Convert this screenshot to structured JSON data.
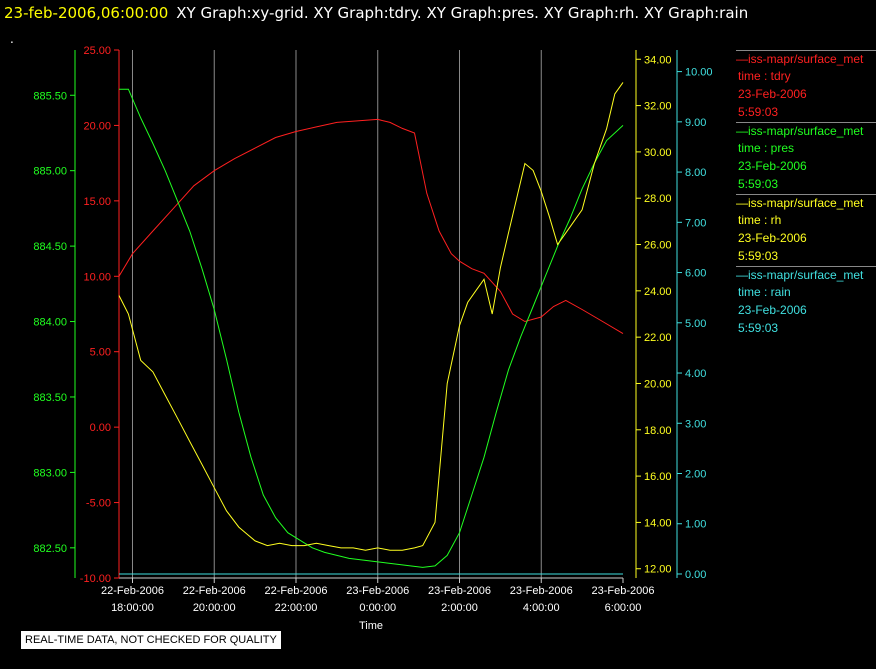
{
  "header": {
    "timestamp": "23-feb-2006,06:00:00",
    "title": "XY Graph:xy-grid.  XY Graph:tdry.  XY Graph:pres.  XY Graph:rh.  XY Graph:rain"
  },
  "dot": ".",
  "footer_note": "REAL-TIME DATA, NOT CHECKED FOR QUALITY",
  "legend": [
    {
      "name": "iss-mapr/surface_met",
      "line1": "time : tdry",
      "line2": "23-Feb-2006",
      "line3": "5:59:03",
      "color": "#ff2020"
    },
    {
      "name": "iss-mapr/surface_met",
      "line1": "time : pres",
      "line2": "23-Feb-2006",
      "line3": "5:59:03",
      "color": "#20ff20"
    },
    {
      "name": "iss-mapr/surface_met",
      "line1": "time : rh",
      "line2": "23-Feb-2006",
      "line3": "5:59:03",
      "color": "#ffff20"
    },
    {
      "name": "iss-mapr/surface_met",
      "line1": "time : rain",
      "line2": "23-Feb-2006",
      "line3": "5:59:03",
      "color": "#40e0e0"
    }
  ],
  "chart_data": {
    "type": "line",
    "xlabel": "Time",
    "x_ticks": [
      {
        "l1": "22-Feb-2006",
        "l2": "18:00:00",
        "h": 18
      },
      {
        "l1": "22-Feb-2006",
        "l2": "20:00:00",
        "h": 20
      },
      {
        "l1": "22-Feb-2006",
        "l2": "22:00:00",
        "h": 22
      },
      {
        "l1": "23-Feb-2006",
        "l2": "0:00:00",
        "h": 24
      },
      {
        "l1": "23-Feb-2006",
        "l2": "2:00:00",
        "h": 26
      },
      {
        "l1": "23-Feb-2006",
        "l2": "4:00:00",
        "h": 28
      },
      {
        "l1": "23-Feb-2006",
        "l2": "6:00:00",
        "h": 30
      }
    ],
    "grid": true,
    "axes": {
      "pres": {
        "color": "#20ff20",
        "min": 882.3,
        "max": 885.8,
        "ticks": [
          "882.50",
          "883.00",
          "883.50",
          "884.00",
          "884.50",
          "885.00",
          "885.50"
        ]
      },
      "tdry": {
        "color": "#ff2020",
        "min": -10,
        "max": 25,
        "ticks": [
          "-10.00",
          "-5.00",
          "0.00",
          "5.00",
          "10.00",
          "15.00",
          "20.00",
          "25.00"
        ]
      },
      "rh": {
        "color": "#ffff20",
        "min": 11.6,
        "max": 34.4,
        "ticks": [
          "12.00",
          "14.00",
          "16.00",
          "18.00",
          "20.00",
          "22.00",
          "24.00",
          "26.00",
          "28.00",
          "30.00",
          "32.00",
          "34.00"
        ]
      },
      "rain": {
        "color": "#40e0e0",
        "min": -0.08,
        "max": 10.43,
        "ticks": [
          "0.00",
          "1.00",
          "2.00",
          "3.00",
          "4.00",
          "5.00",
          "6.00",
          "7.00",
          "8.00",
          "9.00",
          "10.00"
        ]
      }
    },
    "series": [
      {
        "name": "tdry",
        "axis": "tdry",
        "color": "#ff2020",
        "x": [
          17.67,
          18.0,
          18.5,
          19.0,
          19.5,
          20.0,
          20.5,
          21.0,
          21.5,
          22.0,
          22.5,
          23.0,
          23.5,
          24.0,
          24.3,
          24.6,
          24.9,
          25.2,
          25.5,
          25.8,
          26.0,
          26.3,
          26.6,
          27.0,
          27.3,
          27.6,
          28.0,
          28.3,
          28.6,
          29.0,
          29.5,
          30.0
        ],
        "y": [
          10.0,
          11.5,
          13.0,
          14.5,
          16.0,
          17.0,
          17.8,
          18.5,
          19.2,
          19.6,
          19.9,
          20.2,
          20.3,
          20.4,
          20.2,
          19.8,
          19.5,
          15.5,
          13.0,
          11.5,
          11.0,
          10.5,
          10.2,
          9.0,
          7.5,
          7.0,
          7.3,
          8.0,
          8.4,
          7.8,
          7.0,
          6.2
        ]
      },
      {
        "name": "pres",
        "axis": "pres",
        "color": "#20ff20",
        "x": [
          17.67,
          17.9,
          18.2,
          18.5,
          18.8,
          19.1,
          19.4,
          19.7,
          20.0,
          20.3,
          20.6,
          20.9,
          21.2,
          21.5,
          21.8,
          22.1,
          22.4,
          22.7,
          23.0,
          23.3,
          23.6,
          23.9,
          24.2,
          24.5,
          24.8,
          25.1,
          25.4,
          25.7,
          26.0,
          26.3,
          26.6,
          26.9,
          27.2,
          27.5,
          27.8,
          28.1,
          28.4,
          28.7,
          29.0,
          29.3,
          29.6,
          30.0
        ],
        "y": [
          885.54,
          885.54,
          885.35,
          885.18,
          885.0,
          884.8,
          884.6,
          884.35,
          884.08,
          883.75,
          883.4,
          883.1,
          882.85,
          882.7,
          882.6,
          882.55,
          882.5,
          882.47,
          882.45,
          882.43,
          882.42,
          882.41,
          882.4,
          882.39,
          882.38,
          882.37,
          882.38,
          882.45,
          882.6,
          882.85,
          883.1,
          883.4,
          883.68,
          883.9,
          884.1,
          884.3,
          884.5,
          884.68,
          884.88,
          885.05,
          885.2,
          885.3
        ]
      },
      {
        "name": "rh",
        "axis": "rh",
        "color": "#ffff20",
        "x": [
          17.67,
          17.9,
          18.2,
          18.5,
          18.8,
          19.1,
          19.4,
          19.7,
          20.0,
          20.3,
          20.6,
          20.8,
          21.0,
          21.3,
          21.6,
          21.9,
          22.2,
          22.5,
          22.8,
          23.1,
          23.4,
          23.7,
          24.0,
          24.3,
          24.6,
          24.9,
          25.1,
          25.4,
          25.7,
          26.0,
          26.2,
          26.4,
          26.6,
          26.8,
          27.0,
          27.2,
          27.4,
          27.6,
          27.8,
          28.0,
          28.2,
          28.4,
          28.6,
          28.8,
          29.0,
          29.3,
          29.6,
          29.8,
          30.0
        ],
        "y": [
          23.8,
          23.0,
          21.0,
          20.5,
          19.5,
          18.5,
          17.5,
          16.5,
          15.5,
          14.5,
          13.8,
          13.5,
          13.2,
          13.0,
          13.1,
          13.0,
          13.0,
          13.1,
          13.0,
          12.9,
          12.9,
          12.8,
          12.9,
          12.8,
          12.8,
          12.9,
          13.0,
          14.0,
          20.0,
          22.5,
          23.5,
          24.0,
          24.5,
          23.0,
          25.0,
          26.5,
          28.0,
          29.5,
          29.2,
          28.3,
          27.2,
          26.0,
          26.5,
          27.0,
          27.5,
          29.5,
          31.0,
          32.5,
          33.0
        ]
      },
      {
        "name": "rain",
        "axis": "rain",
        "color": "#40e0e0",
        "x": [
          17.67,
          30.0
        ],
        "y": [
          0.0,
          0.0
        ]
      }
    ]
  }
}
